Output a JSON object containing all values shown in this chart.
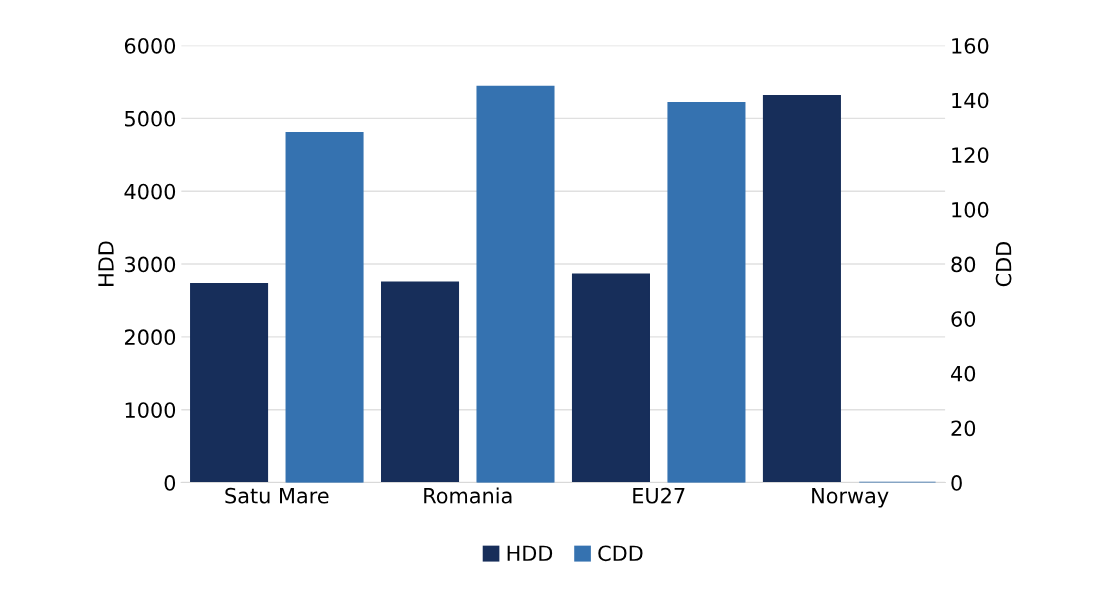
{
  "chart_data": {
    "type": "bar",
    "categories": [
      "Satu Mare",
      "Romania",
      "EU27",
      "Norway"
    ],
    "ylabel": "HDD",
    "y2label": "CDD",
    "series": [
      {
        "name": "HDD",
        "color": "#172e5a",
        "values": [
          2730,
          2750,
          2860,
          5310
        ]
      },
      {
        "name": "CDD",
        "color": "#3572b0",
        "values": [
          128,
          145,
          139,
          0
        ],
        "axis": "y2"
      }
    ],
    "ylim": [
      0,
      6000
    ],
    "yticks": [
      0,
      1000,
      2000,
      3000,
      4000,
      5000,
      6000
    ],
    "y2lim": [
      0,
      160
    ],
    "y2ticks": [
      0,
      20,
      40,
      60,
      80,
      100,
      120,
      140,
      160
    ],
    "grid": "y",
    "legend": "bottom"
  }
}
